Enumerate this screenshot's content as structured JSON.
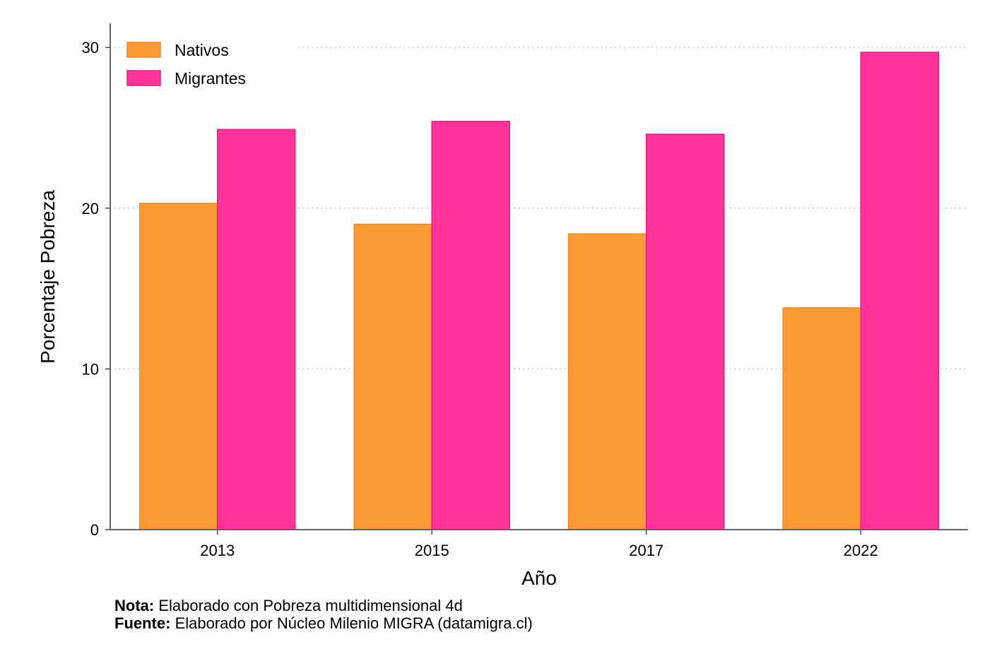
{
  "chart_data": {
    "type": "bar",
    "title": "",
    "xlabel": "Año",
    "ylabel": "Porcentaje Pobreza",
    "categories": [
      "2013",
      "2015",
      "2017",
      "2022"
    ],
    "series": [
      {
        "name": "Nativos",
        "color": "#FD9A36",
        "values": [
          20.3,
          19.0,
          18.4,
          13.8
        ]
      },
      {
        "name": "Migrantes",
        "color": "#FF3399",
        "values": [
          24.9,
          25.4,
          24.6,
          29.7
        ]
      }
    ],
    "ylim": [
      0,
      31.5
    ],
    "yticks": [
      0,
      10,
      20,
      30
    ],
    "grid": true,
    "legend_position": "top-left"
  },
  "notes": [
    {
      "label": "Nota:",
      "text": "Elaborado con Pobreza multidimensional 4d"
    },
    {
      "label": "Fuente:",
      "text": "Elaborado por Núcleo Milenio MIGRA (datamigra.cl)"
    }
  ]
}
